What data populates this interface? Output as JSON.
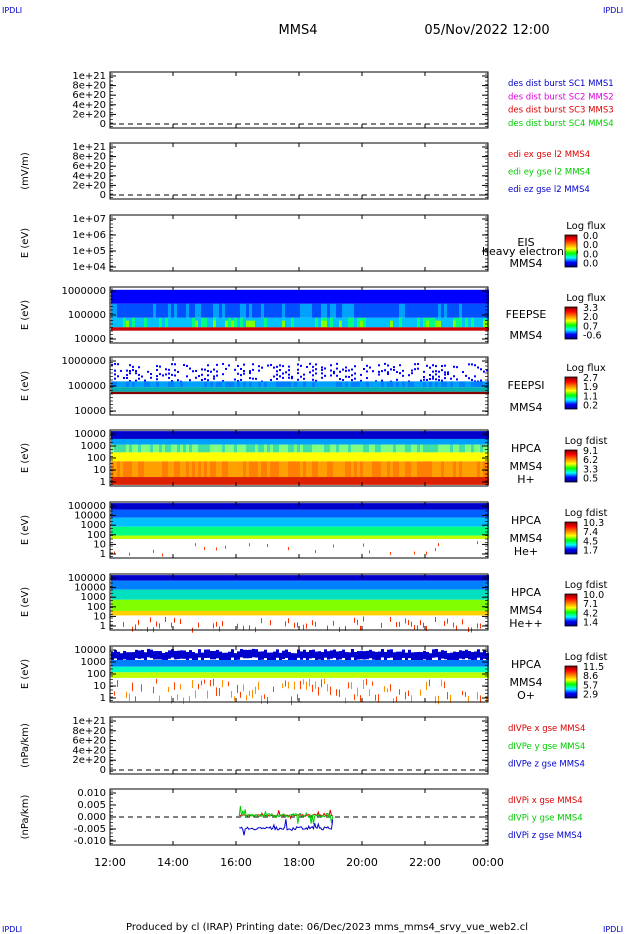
{
  "corner_label": "IPDLI",
  "header": {
    "spacecraft": "MMS4",
    "datetime": "05/Nov/2022 12:00"
  },
  "footer": "Produced by cl (IRAP)   Printing date: 06/Dec/2023   mms_mms4_srvy_vue_web2.cl",
  "time_axis": {
    "ticks": [
      "12:00",
      "14:00",
      "16:00",
      "18:00",
      "20:00",
      "22:00",
      "00:00"
    ],
    "range_hours": [
      12,
      24
    ]
  },
  "colors": {
    "blue": "#0000cc",
    "magenta": "#dd00dd",
    "red": "#dd0000",
    "green": "#00cc00",
    "colorbar": [
      "#000080",
      "#0000ff",
      "#00ffff",
      "#00ff00",
      "#ffff00",
      "#ff8000",
      "#ff0000",
      "#800000"
    ]
  },
  "chart_data": [
    {
      "type": "line",
      "ylabel": "",
      "yticks": [
        "1e+21",
        "8e+20",
        "6e+20",
        "4e+20",
        "2e+20",
        "0"
      ],
      "ylim": [
        0,
        1e+21
      ],
      "series": [],
      "legend": [
        {
          "text": "des dist burst SC1 MMS1",
          "color": "blue"
        },
        {
          "text": "des dist burst SC2 MMS2",
          "color": "magenta"
        },
        {
          "text": "des dist burst SC3 MMS3",
          "color": "red"
        },
        {
          "text": "des dist burst SC4 MMS4",
          "color": "green"
        }
      ]
    },
    {
      "type": "line",
      "ylabel": "(mV/m)",
      "yticks": [
        "1e+21",
        "8e+20",
        "6e+20",
        "4e+20",
        "2e+20",
        "0"
      ],
      "ylim": [
        0,
        1e+21
      ],
      "series": [],
      "legend": [
        {
          "text": "edi ex gse l2 MMS4",
          "color": "red"
        },
        {
          "text": "edi ey gse l2 MMS4",
          "color": "green"
        },
        {
          "text": "edi ez gse l2 MMS4",
          "color": "blue"
        }
      ]
    },
    {
      "type": "heatmap",
      "ylabel": "E (eV)",
      "scale": "log",
      "yticks": [
        "1e+07",
        "1e+06",
        "1e+05",
        "1e+04"
      ],
      "ylim": [
        10000.0,
        10000000.0
      ],
      "side_labels": [
        "EIS",
        "MMS4"
      ],
      "overlay_text": "heavy electron to",
      "cbar_title": "Log flux",
      "cbar_ticks": [
        "0.0",
        "0.0",
        "0.0",
        "0.0"
      ],
      "fill": "none"
    },
    {
      "type": "heatmap",
      "ylabel": "E (eV)",
      "scale": "log",
      "yticks": [
        "1000000",
        "100000",
        "10000"
      ],
      "ylim": [
        10000.0,
        1000000.0
      ],
      "side_labels": [
        "FEEPSE",
        "MMS4"
      ],
      "cbar_title": "Log flux",
      "cbar_ticks": [
        "3.3",
        "2.0",
        "0.7",
        "-0.6"
      ],
      "fill": "feepse"
    },
    {
      "type": "heatmap",
      "ylabel": "E (eV)",
      "scale": "log",
      "yticks": [
        "1000000",
        "100000",
        "10000"
      ],
      "ylim": [
        10000.0,
        1000000.0
      ],
      "side_labels": [
        "FEEPSI",
        "MMS4"
      ],
      "cbar_title": "Log flux",
      "cbar_ticks": [
        "2.7",
        "1.9",
        "1.1",
        "0.2"
      ],
      "fill": "feepsi"
    },
    {
      "type": "heatmap",
      "ylabel": "E (eV)",
      "scale": "log",
      "yticks": [
        "10000",
        "1000",
        "100",
        "10",
        "1"
      ],
      "ylim": [
        1,
        30000.0
      ],
      "side_labels": [
        "HPCA",
        "MMS4",
        "H+"
      ],
      "cbar_title": "Log fdist",
      "cbar_ticks": [
        "9.1",
        "6.2",
        "3.3",
        "0.5"
      ],
      "fill": "hplus"
    },
    {
      "type": "heatmap",
      "ylabel": "E (eV)",
      "scale": "log",
      "yticks": [
        "100000",
        "10000",
        "1000",
        "100",
        "10",
        "1"
      ],
      "ylim": [
        1,
        100000.0
      ],
      "side_labels": [
        "HPCA",
        "MMS4",
        "He+"
      ],
      "cbar_title": "Log fdist",
      "cbar_ticks": [
        "10.3",
        "7.4",
        "4.5",
        "1.7"
      ],
      "fill": "heplus"
    },
    {
      "type": "heatmap",
      "ylabel": "E (eV)",
      "scale": "log",
      "yticks": [
        "100000",
        "10000",
        "1000",
        "100",
        "10",
        "1"
      ],
      "ylim": [
        1,
        100000.0
      ],
      "side_labels": [
        "HPCA",
        "MMS4",
        "He++"
      ],
      "cbar_title": "Log fdist",
      "cbar_ticks": [
        "10.0",
        "7.1",
        "4.2",
        "1.4"
      ],
      "fill": "hepp"
    },
    {
      "type": "heatmap",
      "ylabel": "E (eV)",
      "scale": "log",
      "yticks": [
        "10000",
        "1000",
        "100",
        "10",
        "1"
      ],
      "ylim": [
        1,
        30000.0
      ],
      "side_labels": [
        "HPCA",
        "MMS4",
        "O+"
      ],
      "cbar_title": "Log fdist",
      "cbar_ticks": [
        "11.5",
        "8.6",
        "5.7",
        "2.9"
      ],
      "fill": "oplus"
    },
    {
      "type": "line",
      "ylabel": "(nPa/km)",
      "yticks": [
        "1e+21",
        "8e+20",
        "6e+20",
        "4e+20",
        "2e+20",
        "0"
      ],
      "ylim": [
        0,
        1e+21
      ],
      "series": [],
      "legend": [
        {
          "text": "dIVPe x gse MMS4",
          "color": "red"
        },
        {
          "text": "dIVPe y gse MMS4",
          "color": "green"
        },
        {
          "text": "dIVPe z gse MMS4",
          "color": "blue"
        }
      ]
    },
    {
      "type": "line",
      "ylabel": "(nPa/km)",
      "yticks": [
        "0.010",
        "0.005",
        "0.000",
        "-0.005",
        "-0.010"
      ],
      "ylim": [
        -0.0125,
        0.0125
      ],
      "data_range_hours": [
        16.1,
        19.1
      ],
      "series": [
        {
          "name": "dIVPi x gse MMS4",
          "color": "red",
          "values_range": [
            -0.001,
            0.004
          ]
        },
        {
          "name": "dIVPi y gse MMS4",
          "color": "green",
          "values_range": [
            -0.004,
            0.009
          ]
        },
        {
          "name": "dIVPi z gse MMS4",
          "color": "blue",
          "values_range": [
            -0.01,
            0.001
          ]
        }
      ],
      "legend": [
        {
          "text": "dIVPi x gse MMS4",
          "color": "red"
        },
        {
          "text": "dIVPi y gse MMS4",
          "color": "green"
        },
        {
          "text": "dIVPi z gse MMS4",
          "color": "blue"
        }
      ]
    }
  ]
}
